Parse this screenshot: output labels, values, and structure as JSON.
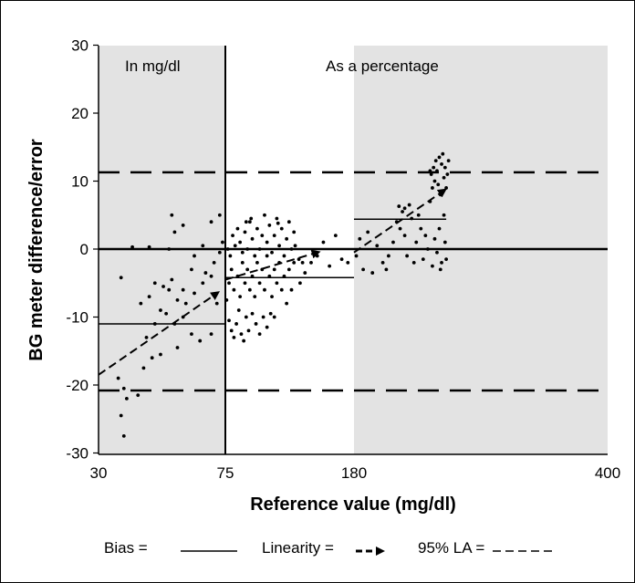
{
  "chart_data": {
    "type": "scatter",
    "ylabel": "BG meter difference/error",
    "xlabel": "Reference value (mg/dl)",
    "x_ticks": [
      "30",
      "75",
      "180",
      "400"
    ],
    "y_ticks": [
      "30",
      "20",
      "10",
      "0",
      "-10",
      "-20",
      "-30"
    ],
    "ylim": [
      -30,
      30
    ],
    "regions": [
      {
        "label": "In mg/dl",
        "from": "30",
        "to": "75",
        "shaded": true
      },
      {
        "label": "As a percentage",
        "from": "75",
        "to": "400",
        "shaded": "180-400"
      }
    ],
    "limits_95": [
      11.3,
      -20.8
    ],
    "bias_segments": [
      {
        "x0": 30,
        "x1": 75,
        "y": -11
      },
      {
        "x0": 75,
        "x1": 180,
        "y": -4.2
      },
      {
        "x0": 180,
        "x1": 260,
        "y": 4.4
      }
    ],
    "linearity_arrows": [
      {
        "x0": 30,
        "y0": -18.5,
        "x1": 72,
        "y1": -6.5
      },
      {
        "x0": 75,
        "y0": -4.5,
        "x1": 150,
        "y1": -0.5
      },
      {
        "x0": 180,
        "y0": -0.5,
        "x1": 258,
        "y1": 8.6
      }
    ],
    "points": [
      [
        39,
        -27.5
      ],
      [
        38,
        -24.5
      ],
      [
        37,
        -19
      ],
      [
        39,
        -20.5
      ],
      [
        40,
        -22
      ],
      [
        44,
        -21.5
      ],
      [
        46,
        -17.5
      ],
      [
        49,
        -16
      ],
      [
        52,
        -15.5
      ],
      [
        58,
        -14.5
      ],
      [
        47,
        -13
      ],
      [
        50,
        -11
      ],
      [
        54,
        -9.5
      ],
      [
        57,
        -11
      ],
      [
        60,
        -10
      ],
      [
        63,
        -12.5
      ],
      [
        66,
        -13.5
      ],
      [
        70,
        -12.5
      ],
      [
        45,
        -8
      ],
      [
        48,
        -7
      ],
      [
        52,
        -9
      ],
      [
        55,
        -6
      ],
      [
        58,
        -7.5
      ],
      [
        61,
        -8
      ],
      [
        64,
        -6.5
      ],
      [
        67,
        -5
      ],
      [
        70,
        -4
      ],
      [
        72,
        -8
      ],
      [
        50,
        -5
      ],
      [
        53,
        -5.5
      ],
      [
        56,
        -4.5
      ],
      [
        60,
        -6
      ],
      [
        63,
        -3
      ],
      [
        68,
        -3.5
      ],
      [
        71,
        -2
      ],
      [
        73,
        -0.5
      ],
      [
        38,
        -4.2
      ],
      [
        42,
        0.3
      ],
      [
        48,
        0.3
      ],
      [
        55,
        0
      ],
      [
        60,
        3.5
      ],
      [
        64,
        -1
      ],
      [
        67,
        0.5
      ],
      [
        70,
        4
      ],
      [
        73,
        5
      ],
      [
        74,
        1
      ],
      [
        56,
        5
      ],
      [
        57,
        2.5
      ],
      [
        76,
        -7.5
      ],
      [
        78,
        -10.5
      ],
      [
        80,
        -12
      ],
      [
        82,
        -13
      ],
      [
        84,
        -11
      ],
      [
        86,
        -9
      ],
      [
        88,
        -12.5
      ],
      [
        90,
        -13.5
      ],
      [
        92,
        -10
      ],
      [
        94,
        -12
      ],
      [
        97,
        -9.5
      ],
      [
        100,
        -11
      ],
      [
        103,
        -12.5
      ],
      [
        106,
        -10
      ],
      [
        109,
        -11.5
      ],
      [
        112,
        -9.5
      ],
      [
        115,
        -10
      ],
      [
        78,
        -5
      ],
      [
        80,
        -3
      ],
      [
        82,
        -6
      ],
      [
        85,
        -4
      ],
      [
        87,
        -7
      ],
      [
        89,
        -2
      ],
      [
        91,
        -5
      ],
      [
        93,
        -3
      ],
      [
        95,
        -6
      ],
      [
        97,
        -4
      ],
      [
        99,
        -7
      ],
      [
        101,
        -2
      ],
      [
        103,
        -5
      ],
      [
        105,
        -3
      ],
      [
        107,
        -6
      ],
      [
        109,
        -1
      ],
      [
        111,
        -4
      ],
      [
        113,
        -7
      ],
      [
        115,
        -3
      ],
      [
        117,
        -5
      ],
      [
        119,
        -2
      ],
      [
        121,
        -6
      ],
      [
        123,
        -4
      ],
      [
        125,
        -8
      ],
      [
        127,
        -3
      ],
      [
        129,
        -6
      ],
      [
        131,
        -2
      ],
      [
        77,
        0
      ],
      [
        79,
        -1
      ],
      [
        81,
        2
      ],
      [
        83,
        0.5
      ],
      [
        85,
        3
      ],
      [
        87,
        1
      ],
      [
        89,
        -0.5
      ],
      [
        91,
        2.5
      ],
      [
        93,
        0
      ],
      [
        95,
        4
      ],
      [
        97,
        1.5
      ],
      [
        99,
        -1
      ],
      [
        101,
        3
      ],
      [
        103,
        0
      ],
      [
        105,
        2
      ],
      [
        107,
        5
      ],
      [
        109,
        1
      ],
      [
        111,
        3.5
      ],
      [
        113,
        -0.5
      ],
      [
        115,
        2
      ],
      [
        117,
        4.5
      ],
      [
        119,
        0.5
      ],
      [
        121,
        3
      ],
      [
        123,
        -1
      ],
      [
        125,
        1.5
      ],
      [
        127,
        4
      ],
      [
        129,
        0
      ],
      [
        131,
        2.5
      ],
      [
        135,
        -1.5
      ],
      [
        140,
        -3.5
      ],
      [
        145,
        -2
      ],
      [
        150,
        -1
      ],
      [
        155,
        1
      ],
      [
        160,
        -2.5
      ],
      [
        165,
        2
      ],
      [
        170,
        -1.5
      ],
      [
        175,
        -2
      ],
      [
        92,
        4
      ],
      [
        96,
        4.5
      ],
      [
        118,
        3.8
      ],
      [
        132,
        0.5
      ],
      [
        136,
        -5
      ],
      [
        138,
        -2
      ],
      [
        182,
        -1
      ],
      [
        185,
        1.5
      ],
      [
        188,
        -3
      ],
      [
        192,
        2.5
      ],
      [
        196,
        -3.5
      ],
      [
        200,
        0.5
      ],
      [
        205,
        -2
      ],
      [
        208,
        -3
      ],
      [
        210,
        -1
      ],
      [
        214,
        1
      ],
      [
        217,
        4
      ],
      [
        219,
        6.3
      ],
      [
        220,
        3
      ],
      [
        222,
        5.5
      ],
      [
        224,
        2
      ],
      [
        226,
        -1
      ],
      [
        228,
        6.5
      ],
      [
        230,
        4.5
      ],
      [
        232,
        -2
      ],
      [
        234,
        1
      ],
      [
        236,
        5
      ],
      [
        238,
        3
      ],
      [
        240,
        -1.5
      ],
      [
        242,
        2
      ],
      [
        244,
        0
      ],
      [
        246,
        7
      ],
      [
        248,
        -2.5
      ],
      [
        250,
        1.5
      ],
      [
        252,
        -0.5
      ],
      [
        254,
        3
      ],
      [
        256,
        -2
      ],
      [
        258,
        5
      ],
      [
        259,
        1
      ],
      [
        260,
        -1.5
      ],
      [
        224,
        6
      ],
      [
        246,
        11.5
      ],
      [
        247,
        11
      ],
      [
        248,
        9
      ],
      [
        249,
        12
      ],
      [
        250,
        10
      ],
      [
        251,
        13
      ],
      [
        252,
        11.5
      ],
      [
        253,
        9.5
      ],
      [
        254,
        13.5
      ],
      [
        255,
        8
      ],
      [
        256,
        12.5
      ],
      [
        257,
        14
      ],
      [
        258,
        10.5
      ],
      [
        259,
        12
      ],
      [
        260,
        9
      ],
      [
        261,
        11
      ],
      [
        262,
        13
      ],
      [
        255,
        -3
      ]
    ]
  },
  "legend": {
    "bias_label": "Bias  =",
    "linearity_label": "Linearity =",
    "la_label": "95% LA ="
  }
}
